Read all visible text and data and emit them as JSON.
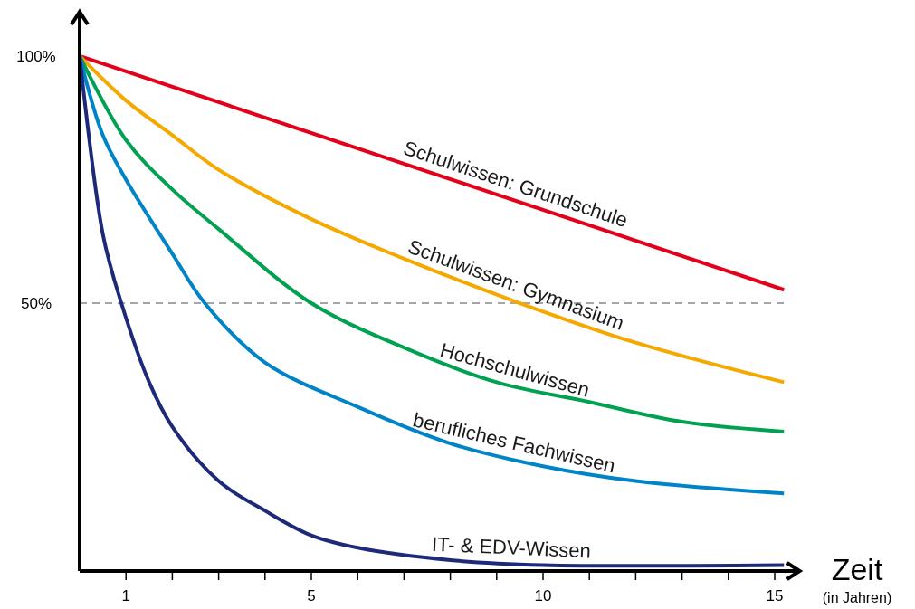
{
  "chart_data": {
    "type": "line",
    "xlabel": "Zeit",
    "annotations": [
      "(in Jahren)"
    ],
    "xlim": [
      0,
      15.5
    ],
    "ylim": [
      -4.2,
      108.6
    ],
    "xticks": [
      {
        "value": 1,
        "label": "1"
      },
      {
        "value": 2,
        "label": null
      },
      {
        "value": 3,
        "label": null
      },
      {
        "value": 4,
        "label": null
      },
      {
        "value": 5,
        "label": "5"
      },
      {
        "value": 6,
        "label": null
      },
      {
        "value": 7,
        "label": null
      },
      {
        "value": 8,
        "label": null
      },
      {
        "value": 9,
        "label": null
      },
      {
        "value": 10,
        "label": "10"
      },
      {
        "value": 11,
        "label": null
      },
      {
        "value": 12,
        "label": null
      },
      {
        "value": 13,
        "label": null
      },
      {
        "value": 14,
        "label": null
      },
      {
        "value": 15,
        "label": "15"
      }
    ],
    "yticks": [
      {
        "value": 50,
        "label": "50%"
      },
      {
        "value": 100,
        "label": "100%"
      }
    ],
    "grid": false,
    "marker": "none",
    "line_style": "solid",
    "ref_lines": [
      {
        "axis": "y",
        "value": 50,
        "label": null,
        "color": "#a6a6a6",
        "line_style": "dashed"
      }
    ],
    "series": [
      {
        "name": "Schulwissen: Grundschule",
        "color": "#e2001a",
        "x": [
          0,
          15.2
        ],
        "values": [
          100,
          52.7
        ]
      },
      {
        "name": "Schulwissen: Gymnasium",
        "color": "#f5a800",
        "x": [
          0,
          1,
          2,
          3,
          5,
          7,
          9.5,
          12,
          15.2
        ],
        "values": [
          100,
          91,
          84,
          77,
          67,
          59,
          50,
          42,
          34
        ]
      },
      {
        "name": "Hochschulwissen",
        "color": "#00a150",
        "x": [
          0,
          1,
          2,
          3,
          5,
          7,
          9,
          11,
          13,
          15.2
        ],
        "values": [
          100,
          83,
          73,
          65,
          50,
          41,
          34,
          30,
          26,
          24
        ]
      },
      {
        "name": "berufliches Fachwissen",
        "color": "#0084c8",
        "x": [
          0,
          0.5,
          1,
          2,
          2.7,
          4,
          6,
          8,
          10,
          12,
          15.2
        ],
        "values": [
          100,
          84,
          75,
          60,
          50,
          38,
          29,
          21.6,
          17,
          14,
          11.5
        ]
      },
      {
        "name": "IT- & EDV-Wissen",
        "color": "#1d2a7a",
        "x": [
          0,
          0.5,
          0.9,
          1.5,
          2,
          3,
          4,
          5,
          6,
          8,
          10,
          15.2
        ],
        "values": [
          100,
          64,
          50,
          34,
          25,
          14,
          8,
          3,
          0.5,
          -2,
          -3,
          -3
        ]
      }
    ]
  }
}
